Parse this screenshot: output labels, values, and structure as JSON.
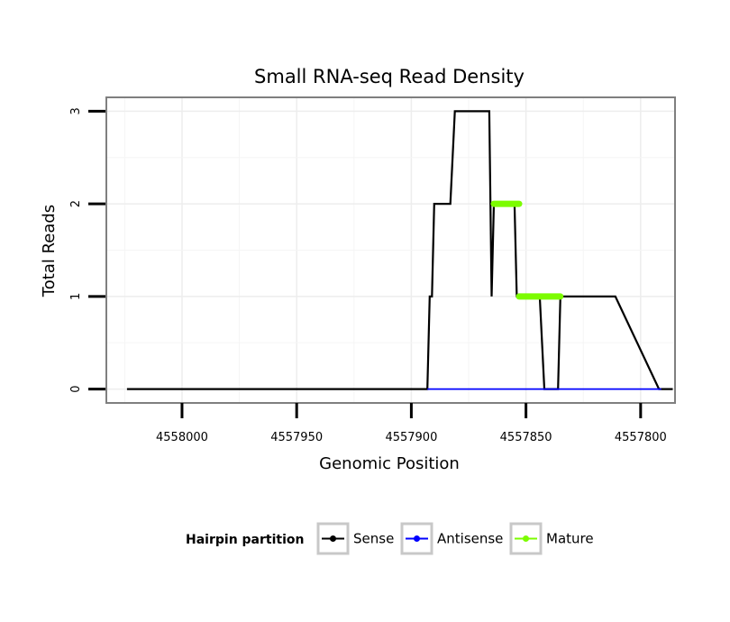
{
  "chart_data": {
    "type": "line",
    "title": "Small RNA-seq Read Density",
    "xlabel": "Genomic Position",
    "ylabel": "Total Reads",
    "x_reversed": true,
    "xlim": [
      4558033,
      4557785
    ],
    "ylim": [
      -0.15,
      3.15
    ],
    "x_ticks": [
      4558000,
      4557950,
      4557900,
      4557850,
      4557800
    ],
    "x_tick_labels": [
      "4558000",
      "4557950",
      "4557900",
      "4557850",
      "4557800"
    ],
    "y_ticks": [
      0,
      1,
      2,
      3
    ],
    "y_tick_labels": [
      "0",
      "1",
      "2",
      "3"
    ],
    "grid": true,
    "legend": {
      "title": "Hairpin partition",
      "position": "bottom",
      "entries": [
        "Sense",
        "Antisense",
        "Mature"
      ]
    },
    "series": [
      {
        "name": "Sense",
        "color": "#000000",
        "x": [
          4558024,
          4557893,
          4557892,
          4557891,
          4557890,
          4557883,
          4557881,
          4557866,
          4557865,
          4557864,
          4557863,
          4557855,
          4557854,
          4557853,
          4557851,
          4557850,
          4557844,
          4557842,
          4557836,
          4557835,
          4557812,
          4557811,
          4557792,
          4557791,
          4557786
        ],
        "y": [
          0,
          0,
          1,
          1,
          2,
          2,
          3,
          3,
          1,
          2,
          2,
          2,
          1,
          1,
          1,
          1,
          1,
          0,
          0,
          1,
          1,
          1,
          0,
          0,
          0
        ]
      },
      {
        "name": "Antisense",
        "color": "#0000ff",
        "x": [
          4557893,
          4557791
        ],
        "y": [
          0,
          0
        ]
      },
      {
        "name": "Mature",
        "color": "#7cfc00",
        "segments": [
          {
            "x": [
              4557864,
              4557853
            ],
            "y": [
              2,
              2
            ]
          },
          {
            "x": [
              4557853,
              4557835
            ],
            "y": [
              1,
              1
            ]
          }
        ]
      }
    ]
  }
}
